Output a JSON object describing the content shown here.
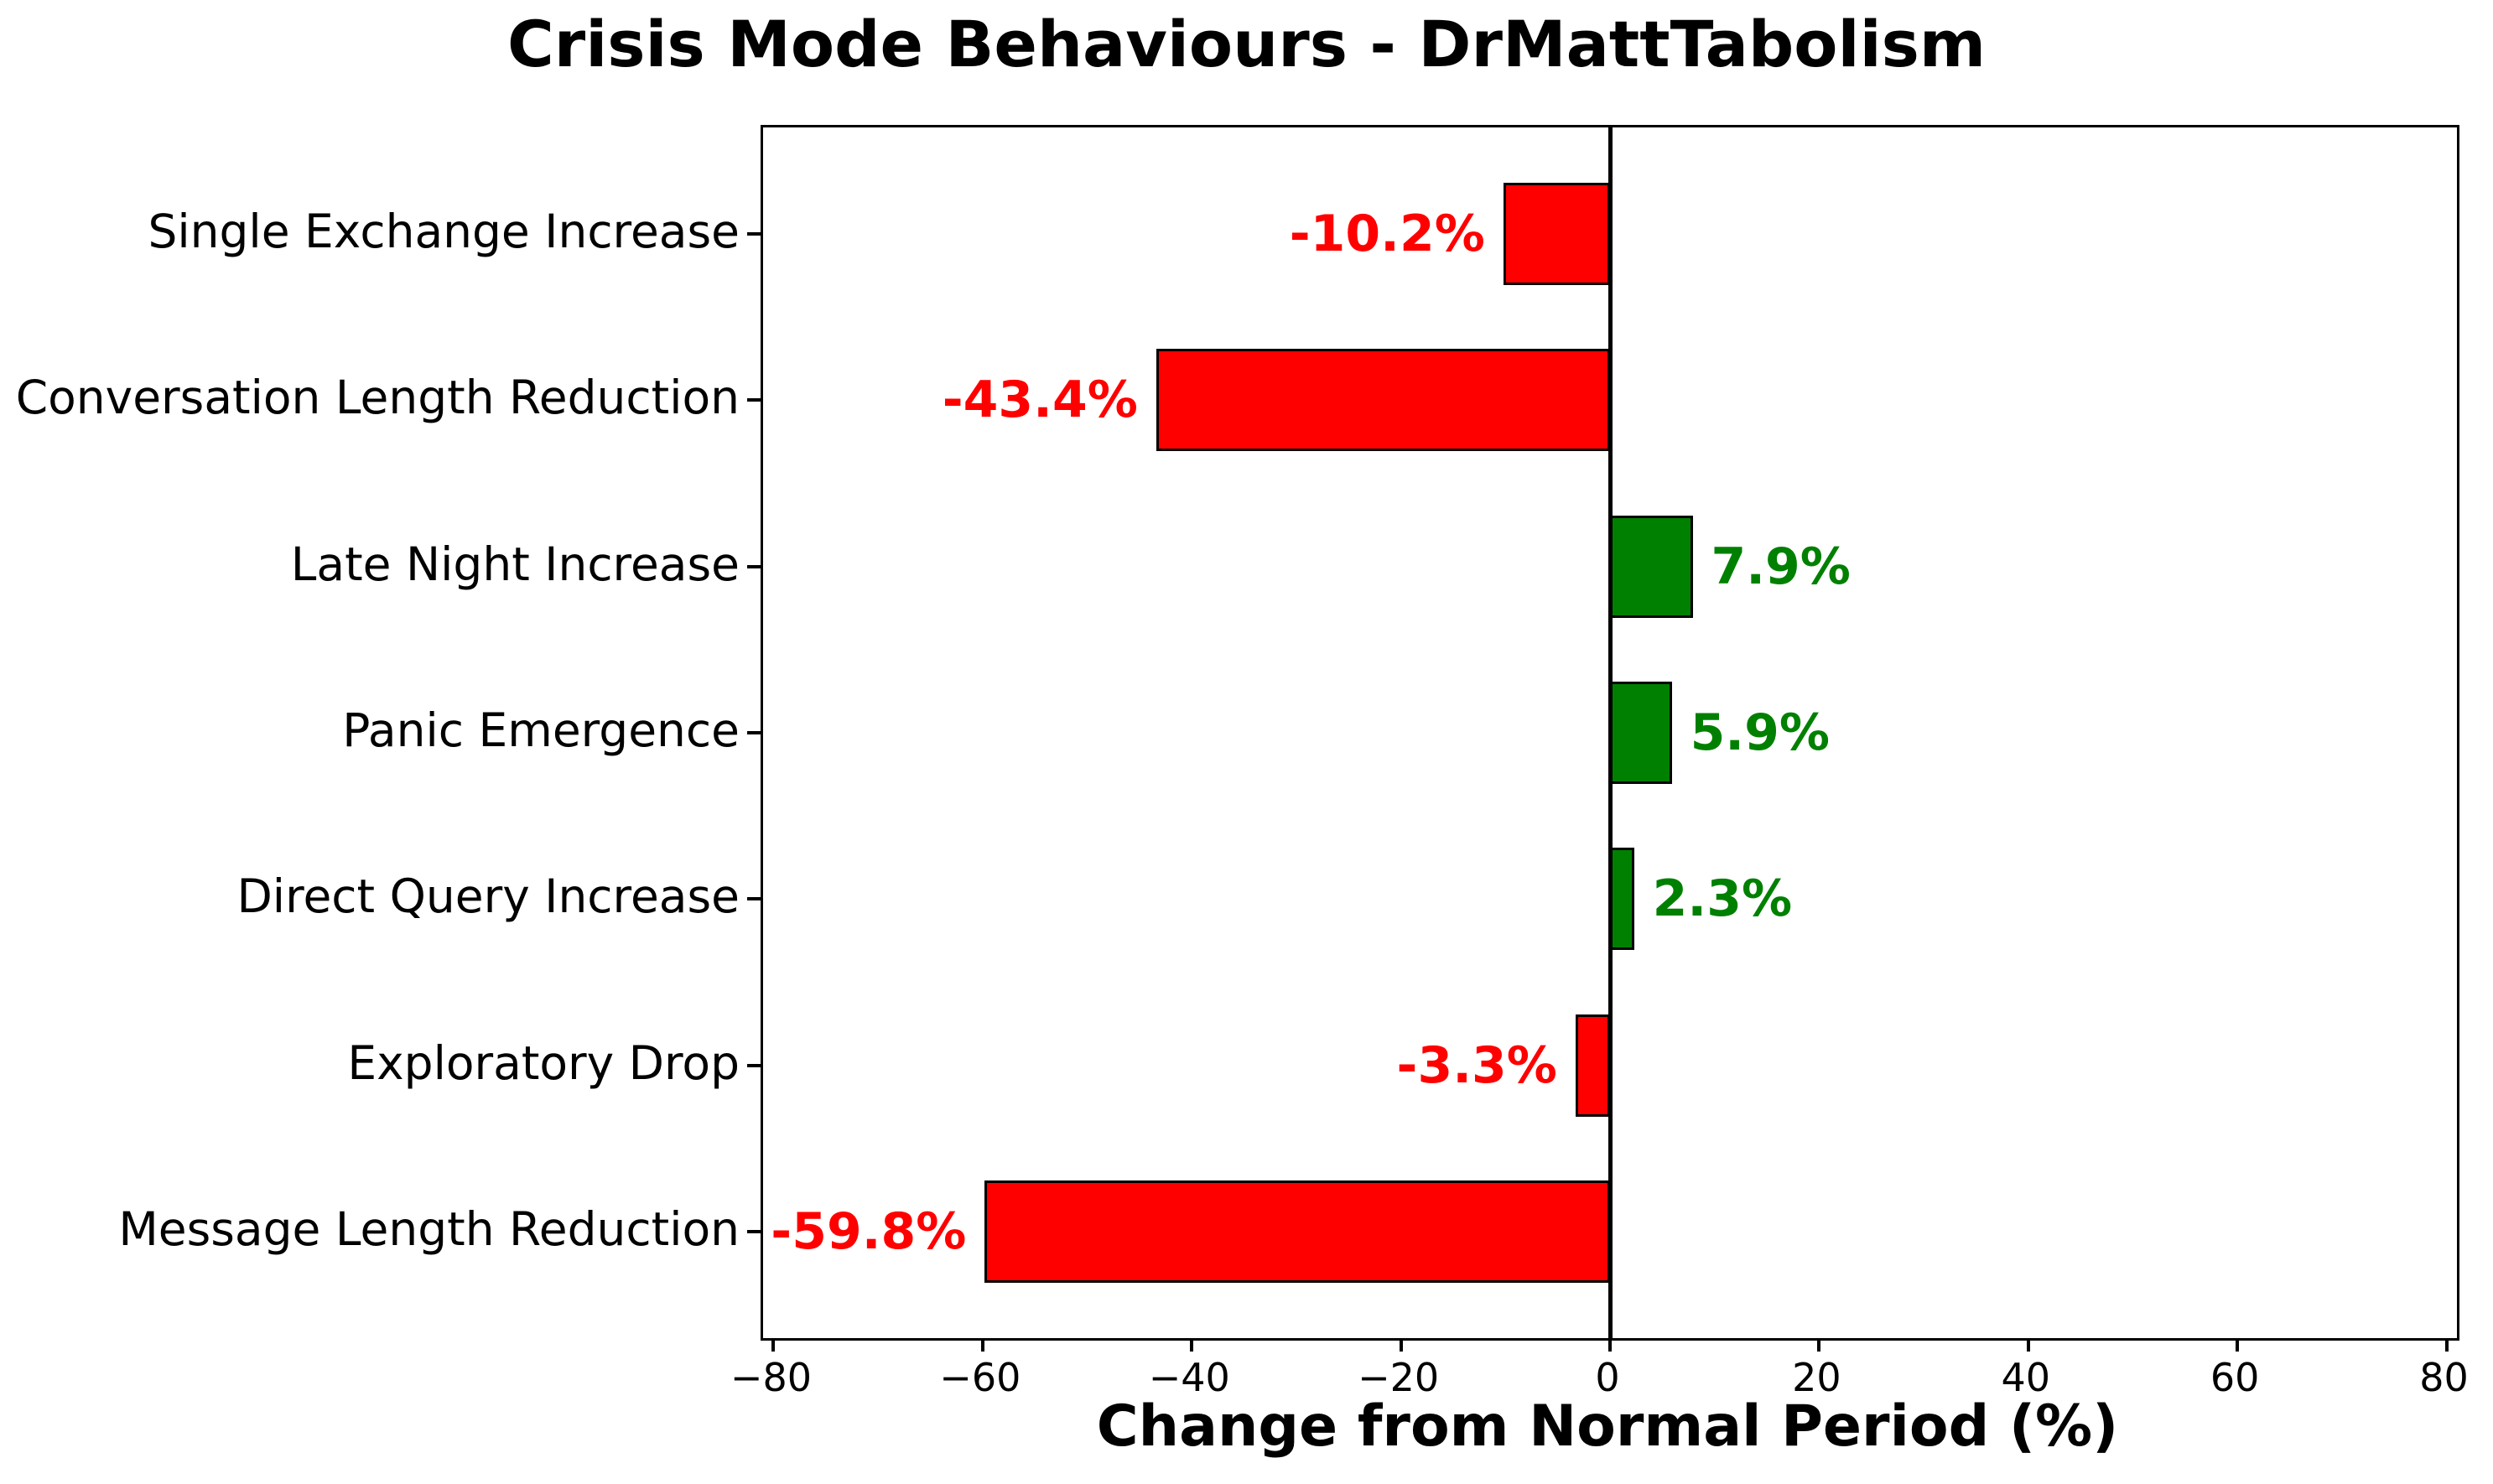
{
  "chart_data": {
    "type": "bar",
    "orientation": "horizontal",
    "title": "Crisis Mode Behaviours - DrMattTabolism",
    "xlabel": "Change from Normal Period (%)",
    "categories": [
      "Single Exchange Increase",
      "Conversation Length Reduction",
      "Late Night Increase",
      "Panic Emergence",
      "Direct Query Increase",
      "Exploratory Drop",
      "Message Length Reduction"
    ],
    "values": [
      -10.2,
      -43.4,
      7.9,
      5.9,
      2.3,
      -3.3,
      -59.8
    ],
    "value_labels": [
      "-10.2%",
      "-43.4%",
      "7.9%",
      "5.9%",
      "2.3%",
      "-3.3%",
      "-59.8%"
    ],
    "xlim": [
      -81,
      81
    ],
    "xticks": [
      -80,
      -60,
      -40,
      -20,
      0,
      20,
      40,
      60,
      80
    ],
    "xtick_labels": [
      "−80",
      "−60",
      "−40",
      "−20",
      "0",
      "20",
      "40",
      "60",
      "80"
    ],
    "grid": false,
    "legend": "none",
    "colors": {
      "negative_bar": "#ff0000",
      "positive_bar": "#008000",
      "negative_label": "#ff0000",
      "positive_label": "#008000",
      "bar_edge": "#000000",
      "axis": "#000000",
      "background": "#ffffff"
    }
  }
}
